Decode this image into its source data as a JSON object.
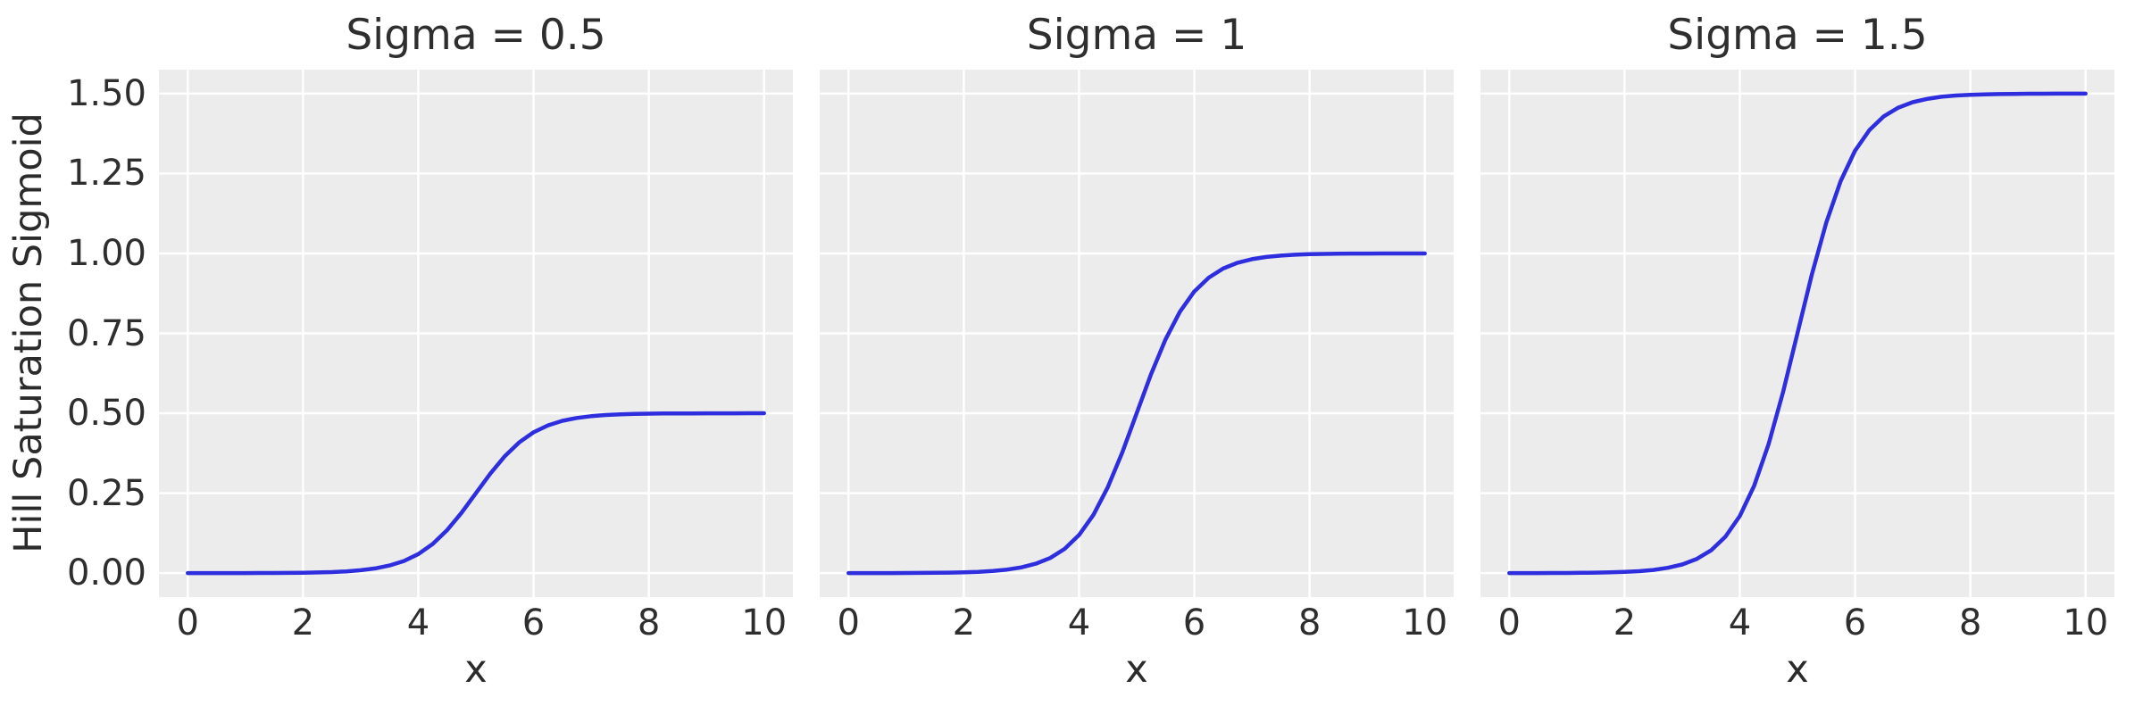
{
  "chart_data": {
    "type": "line",
    "layout": "1x3-shared-y",
    "ylabel": "Hill Saturation Sigmoid",
    "xlabel": "x",
    "xlim": [
      -0.5,
      10.5
    ],
    "ylim": [
      -0.075,
      1.575
    ],
    "xticks": [
      0,
      2,
      4,
      6,
      8,
      10
    ],
    "xtick_labels": [
      "0",
      "2",
      "4",
      "6",
      "8",
      "10"
    ],
    "yticks": [
      0.0,
      0.25,
      0.5,
      0.75,
      1.0,
      1.25,
      1.5
    ],
    "ytick_labels": [
      "0.00",
      "0.25",
      "0.50",
      "0.75",
      "1.00",
      "1.25",
      "1.50"
    ],
    "grid": true,
    "legend": "none",
    "line_color": "#2e2ede",
    "plot_bg": "#ececec",
    "grid_color": "#ffffff",
    "x": [
      0,
      0.25,
      0.5,
      0.75,
      1,
      1.25,
      1.5,
      1.75,
      2,
      2.25,
      2.5,
      2.75,
      3,
      3.25,
      3.5,
      3.75,
      4,
      4.25,
      4.5,
      4.75,
      5,
      5.25,
      5.5,
      5.75,
      6,
      6.25,
      6.5,
      6.75,
      7,
      7.25,
      7.5,
      7.75,
      8,
      8.25,
      8.5,
      8.75,
      9,
      9.25,
      9.5,
      9.75,
      10
    ],
    "subplots": [
      {
        "title": "Sigma = 0.5",
        "sigma": 0.5,
        "y": [
          0,
          0,
          0.0001,
          0.0001,
          0.0002,
          0.0003,
          0.0005,
          0.0007,
          0.0012,
          0.002,
          0.0033,
          0.0055,
          0.009,
          0.0147,
          0.0237,
          0.0379,
          0.0596,
          0.0912,
          0.1345,
          0.1888,
          0.25,
          0.3112,
          0.3655,
          0.4088,
          0.4404,
          0.4621,
          0.4763,
          0.4853,
          0.491,
          0.4945,
          0.4967,
          0.498,
          0.4988,
          0.4992,
          0.4995,
          0.4997,
          0.4998,
          0.4999,
          0.4999,
          0.5,
          0.5
        ]
      },
      {
        "title": "Sigma = 1",
        "sigma": 1,
        "y": [
          0,
          0.0001,
          0.0001,
          0.0002,
          0.0003,
          0.0006,
          0.0009,
          0.0015,
          0.0025,
          0.0041,
          0.0067,
          0.011,
          0.018,
          0.0293,
          0.0474,
          0.0759,
          0.1192,
          0.1824,
          0.2689,
          0.3775,
          0.5,
          0.6225,
          0.7311,
          0.8176,
          0.8808,
          0.9241,
          0.9526,
          0.9707,
          0.982,
          0.989,
          0.9933,
          0.9959,
          0.9975,
          0.9985,
          0.9991,
          0.9995,
          0.9997,
          0.9998,
          0.9999,
          0.9999,
          1
        ]
      },
      {
        "title": "Sigma = 1.5",
        "sigma": 1.5,
        "y": [
          0.0001,
          0.0001,
          0.0002,
          0.0003,
          0.0005,
          0.0008,
          0.0014,
          0.0023,
          0.0037,
          0.0061,
          0.01,
          0.0165,
          0.027,
          0.044,
          0.0711,
          0.1138,
          0.1788,
          0.2736,
          0.4034,
          0.5663,
          0.75,
          0.9337,
          1.0966,
          1.2264,
          1.3212,
          1.3862,
          1.4289,
          1.456,
          1.473,
          1.4835,
          1.49,
          1.4939,
          1.4963,
          1.4978,
          1.4986,
          1.4992,
          1.4995,
          1.4997,
          1.4998,
          1.4999,
          1.4999
        ]
      }
    ]
  }
}
